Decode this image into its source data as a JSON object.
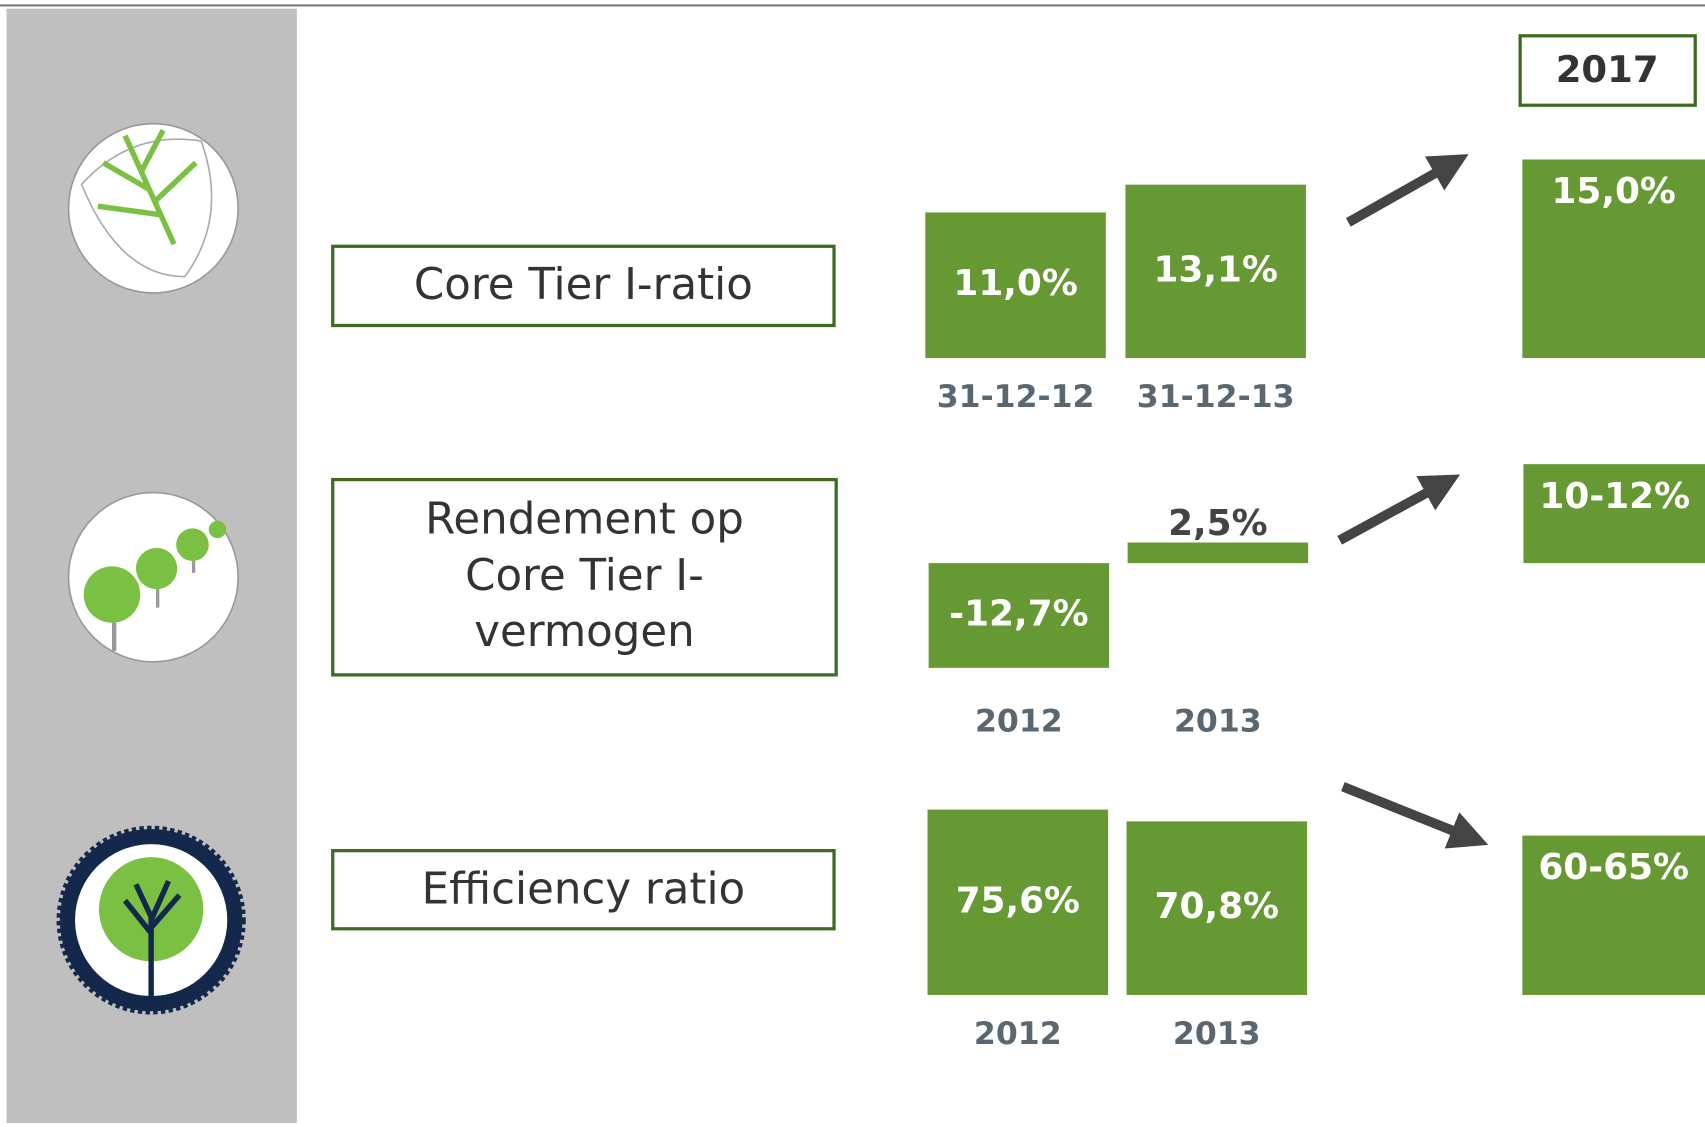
{
  "target_year": "2017",
  "chart_data": [
    {
      "type": "bar",
      "title": "Core Tier I-ratio",
      "categories": [
        "31-12-12",
        "31-12-13"
      ],
      "values": [
        11.0,
        13.1
      ],
      "value_labels": [
        "11,0%",
        "13,1%"
      ],
      "target": {
        "value": 15.0,
        "label": "15,0%"
      },
      "ylim": [
        0,
        16
      ],
      "color": "#669933"
    },
    {
      "type": "bar",
      "title": [
        "Rendement op",
        "Core Tier I-",
        "vermogen"
      ],
      "categories": [
        "2012",
        "2013"
      ],
      "values": [
        -12.7,
        2.5
      ],
      "value_labels": [
        "-12,7%",
        "2,5%"
      ],
      "target": {
        "low": 10,
        "high": 12,
        "label": "10-12%"
      },
      "ylim": [
        -13,
        12
      ],
      "color": "#669933"
    },
    {
      "type": "bar",
      "title": "Efficiency ratio",
      "categories": [
        "2012",
        "2013"
      ],
      "values": [
        75.6,
        70.8
      ],
      "value_labels": [
        "75,6%",
        "70,8%"
      ],
      "target": {
        "low": 60,
        "high": 65,
        "label": "60-65%"
      },
      "ylim": [
        0,
        80
      ],
      "color": "#669933"
    }
  ]
}
